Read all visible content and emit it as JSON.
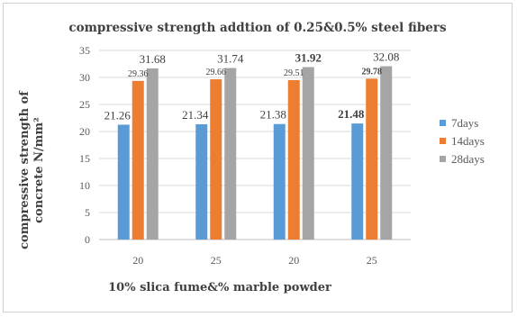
{
  "chart_data": {
    "type": "bar",
    "title": "compressive strength addtion of 0.25&0.5% steel fibers",
    "xlabel": "10% slica fume&% marble powder",
    "ylabel_line1": "compressive strength of",
    "ylabel_line2": "concrete N/mm²",
    "categories": [
      "20",
      "25",
      "20",
      "25"
    ],
    "ylim": [
      0,
      35
    ],
    "yticks": [
      "0",
      "5",
      "10",
      "15",
      "20",
      "25",
      "30",
      "35"
    ],
    "grid": true,
    "legend_position": "right",
    "series": [
      {
        "name": "7days",
        "color": "#5b9bd5",
        "values": [
          21.26,
          21.34,
          21.38,
          21.48
        ],
        "labels": [
          "21.26",
          "21.34",
          "21.38",
          "21.48"
        ],
        "bold": [
          false,
          false,
          false,
          true
        ],
        "label_size": "large"
      },
      {
        "name": "14days",
        "color": "#ed7d31",
        "values": [
          29.36,
          29.66,
          29.51,
          29.78
        ],
        "labels": [
          "29.36",
          "29.66",
          "29.51",
          "29.78"
        ],
        "bold": [
          false,
          false,
          false,
          true
        ],
        "label_size": "small"
      },
      {
        "name": "28days",
        "color": "#a5a5a5",
        "values": [
          31.68,
          31.74,
          31.92,
          32.08
        ],
        "labels": [
          "31.68",
          "31.74",
          "31.92",
          "32.08"
        ],
        "bold": [
          false,
          false,
          true,
          false
        ],
        "label_size": "large"
      }
    ]
  }
}
